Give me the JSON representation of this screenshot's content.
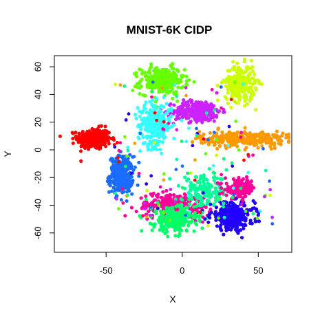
{
  "chart_data": {
    "type": "scatter",
    "title": "MNIST-6K CIDP",
    "xlabel": "X",
    "ylabel": "Y",
    "xlim": [
      -84,
      72
    ],
    "ylim": [
      -74,
      68
    ],
    "xticks": [
      -50,
      0,
      50
    ],
    "yticks": [
      -60,
      -40,
      -20,
      0,
      20,
      40,
      60
    ],
    "grid": false,
    "legend": "none",
    "clusters": [
      {
        "color": "#ff0000",
        "center": [
          -58,
          8
        ],
        "spread": [
          10,
          7
        ],
        "count": 300
      },
      {
        "color": "#1a6cff",
        "center": [
          -40,
          -18
        ],
        "spread": [
          7,
          12
        ],
        "count": 300
      },
      {
        "color": "#66ff00",
        "center": [
          -13,
          50
        ],
        "spread": [
          13,
          9
        ],
        "count": 280
      },
      {
        "color": "#cc22ff",
        "center": [
          10,
          28
        ],
        "spread": [
          14,
          7
        ],
        "count": 300
      },
      {
        "color": "#33ffff",
        "center": [
          -18,
          18
        ],
        "spread": [
          10,
          14
        ],
        "count": 280
      },
      {
        "color": "#ccff00",
        "center": [
          38,
          48
        ],
        "spread": [
          9,
          12
        ],
        "count": 260
      },
      {
        "color": "#ff9900",
        "center": [
          40,
          8
        ],
        "spread": [
          26,
          5
        ],
        "count": 300
      },
      {
        "color": "#ff0099",
        "center": [
          -5,
          -40
        ],
        "spread": [
          22,
          8
        ],
        "count": 260
      },
      {
        "color": "#00ff66",
        "center": [
          -5,
          -50
        ],
        "spread": [
          13,
          9
        ],
        "count": 260
      },
      {
        "color": "#2200ff",
        "center": [
          33,
          -48
        ],
        "spread": [
          13,
          9
        ],
        "count": 300
      },
      {
        "color": "#00ff99",
        "center": [
          15,
          -30
        ],
        "spread": [
          14,
          10
        ],
        "count": 160
      },
      {
        "color": "#ff0099",
        "center": [
          38,
          -28
        ],
        "spread": [
          9,
          6
        ],
        "count": 140
      }
    ]
  }
}
